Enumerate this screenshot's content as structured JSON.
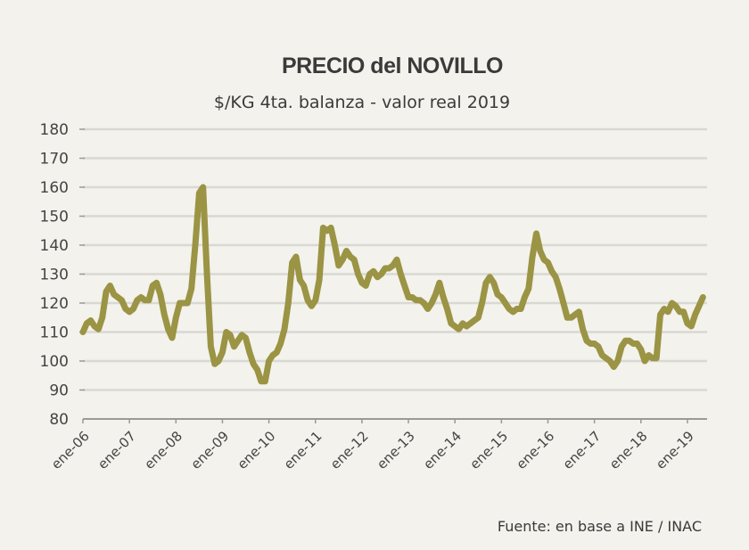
{
  "chart_data": {
    "type": "line",
    "title": "PRECIO del NOVILLO",
    "subtitle": "$/KG 4ta. balanza - valor real 2019",
    "source": "Fuente: en base a INE / INAC",
    "xlabel": "",
    "ylabel": "",
    "ylim": [
      80,
      180
    ],
    "yticks": [
      80,
      90,
      100,
      110,
      120,
      130,
      140,
      150,
      160,
      170,
      180
    ],
    "xtick_labels": [
      "ene-06",
      "ene-07",
      "ene-08",
      "ene-09",
      "ene-10",
      "ene-11",
      "ene-12",
      "ene-13",
      "ene-14",
      "ene-15",
      "ene-16",
      "ene-17",
      "ene-18",
      "ene-19"
    ],
    "x_start": "ene-06",
    "x_frequency": "monthly",
    "grid": true,
    "legend": "none",
    "series": [
      {
        "name": "Precio del novillo",
        "color": "#9a9444",
        "values": [
          110,
          113,
          114,
          112,
          111,
          115,
          124,
          126,
          123,
          122,
          121,
          118,
          117,
          118,
          121,
          122,
          121,
          121,
          126,
          127,
          123,
          116,
          111,
          108,
          115,
          120,
          120,
          120,
          125,
          140,
          158,
          160,
          130,
          105,
          99,
          100,
          103,
          110,
          109,
          105,
          107,
          109,
          108,
          103,
          99,
          97,
          93,
          93,
          100,
          102,
          103,
          106,
          111,
          120,
          134,
          136,
          128,
          126,
          121,
          119,
          121,
          128,
          146,
          145,
          146,
          140,
          133,
          135,
          138,
          136,
          135,
          130,
          127,
          126,
          130,
          131,
          129,
          130,
          132,
          132,
          133,
          135,
          130,
          126,
          122,
          122,
          121,
          121,
          120,
          118,
          120,
          123,
          127,
          122,
          118,
          113,
          112,
          111,
          113,
          112,
          113,
          114,
          115,
          120,
          127,
          129,
          127,
          123,
          122,
          120,
          118,
          117,
          118,
          118,
          122,
          125,
          136,
          144,
          138,
          135,
          134,
          131,
          129,
          125,
          120,
          115,
          115,
          116,
          117,
          111,
          107,
          106,
          106,
          105,
          102,
          101,
          100,
          98,
          100,
          105,
          107,
          107,
          106,
          106,
          104,
          100,
          102,
          101,
          101,
          116,
          118,
          117,
          120,
          119,
          117,
          117,
          113,
          112,
          116,
          119,
          122
        ]
      }
    ]
  }
}
